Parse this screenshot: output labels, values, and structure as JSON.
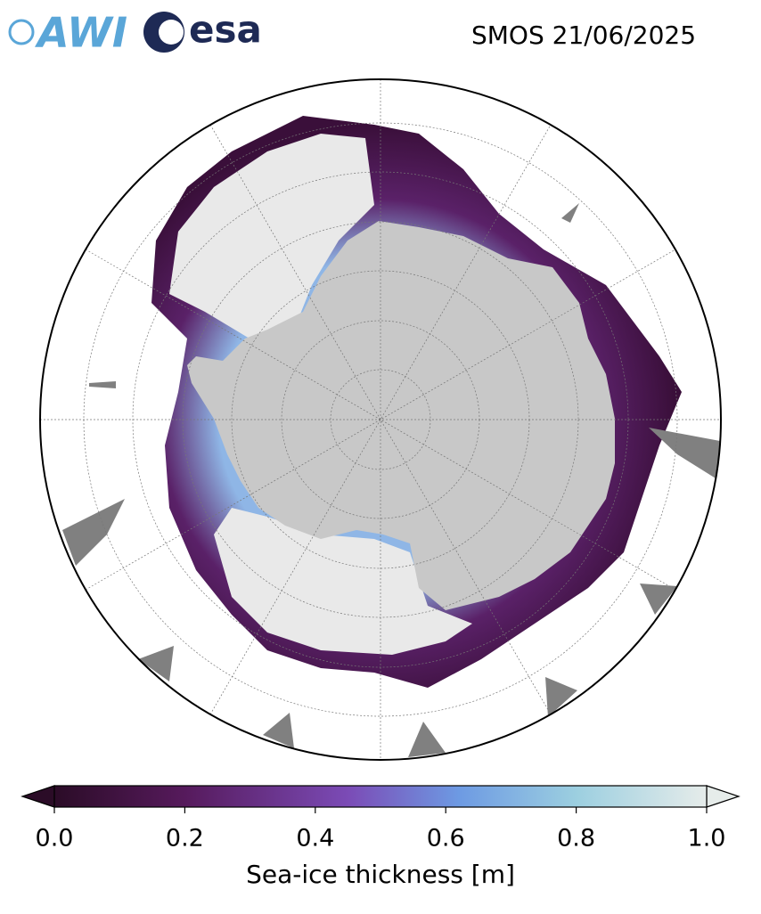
{
  "logos": [
    "AWI",
    "esa"
  ],
  "title": "SMOS 21/06/2025",
  "colorbar": {
    "label": "Sea-ice thickness [m]",
    "range": [
      0,
      1
    ],
    "ticks": [
      {
        "value": 0,
        "label": "0.0"
      },
      {
        "value": 0.2,
        "label": "0.2"
      },
      {
        "value": 0.4,
        "label": "0.4"
      },
      {
        "value": 0.6,
        "label": "0.6"
      },
      {
        "value": 0.8,
        "label": "0.8"
      },
      {
        "value": 1,
        "label": "1.0"
      }
    ]
  }
}
